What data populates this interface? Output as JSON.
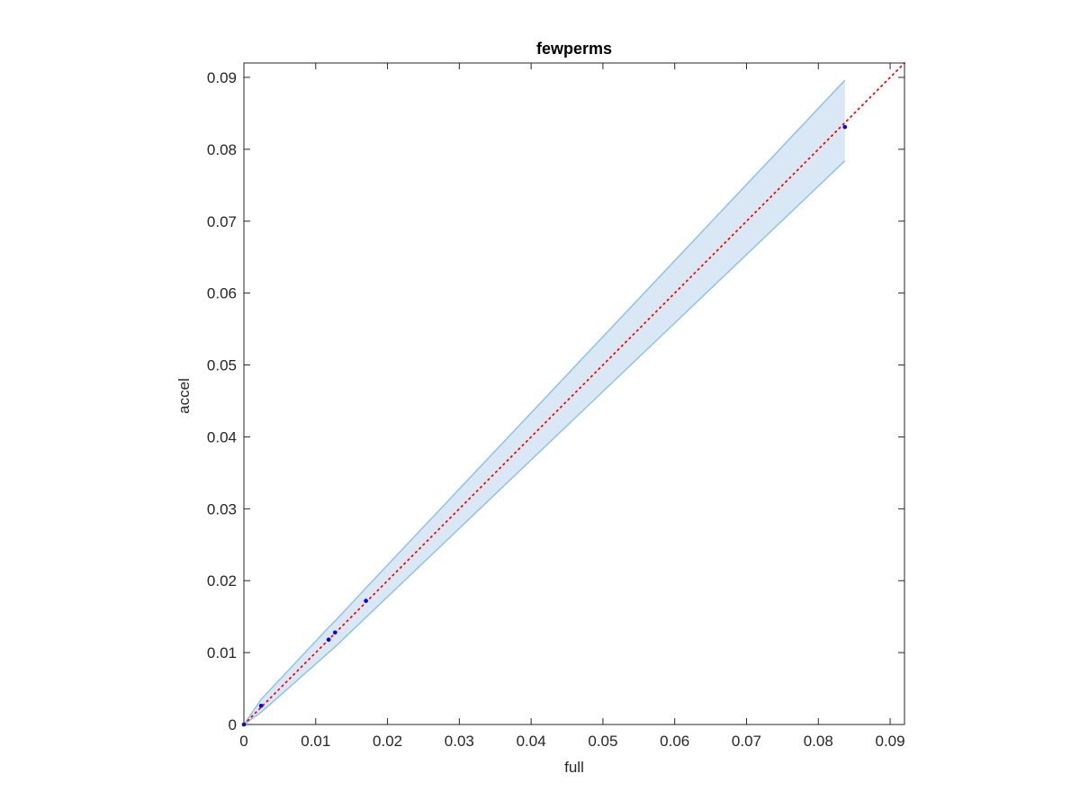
{
  "chart_data": {
    "type": "scatter",
    "title": "fewperms",
    "xlabel": "full",
    "ylabel": "accel",
    "xlim": [
      0,
      0.092
    ],
    "ylim": [
      0,
      0.092
    ],
    "xticks": [
      0,
      0.01,
      0.02,
      0.03,
      0.04,
      0.05,
      0.06,
      0.07,
      0.08,
      0.09
    ],
    "yticks": [
      0,
      0.01,
      0.02,
      0.03,
      0.04,
      0.05,
      0.06,
      0.07,
      0.08,
      0.09
    ],
    "band": {
      "x": [
        0,
        0.0024,
        0.0118,
        0.0127,
        0.017,
        0.0837
      ],
      "upper": [
        0,
        0.0035,
        0.0135,
        0.0144,
        0.019,
        0.0896
      ],
      "lower": [
        0,
        0.0017,
        0.01,
        0.0108,
        0.0149,
        0.0784
      ],
      "color": "#8fc3e4",
      "fill": "#dae8f5"
    },
    "line": {
      "x": [
        0,
        0.092
      ],
      "y": [
        0,
        0.092
      ],
      "color": "#ff0000"
    },
    "points": {
      "x": [
        0,
        0.0024,
        0.0118,
        0.0127,
        0.017,
        0.0837
      ],
      "y": [
        0,
        0.0026,
        0.0118,
        0.0128,
        0.0172,
        0.0831
      ],
      "color": "#0000ff"
    }
  }
}
